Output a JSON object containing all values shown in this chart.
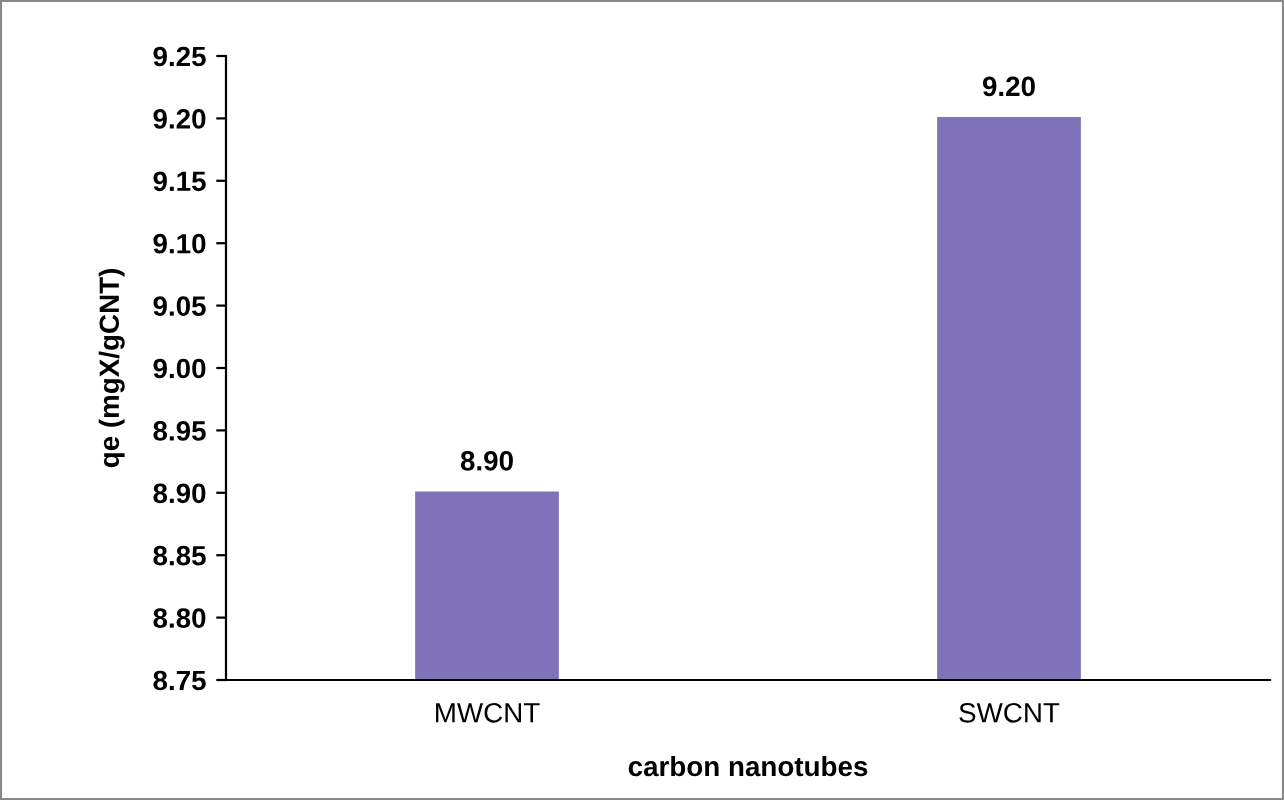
{
  "chart_data": {
    "type": "bar",
    "xlabel": "carbon nanotubes",
    "ylabel": "qe (mgX/gCNT)",
    "categories": [
      "MWCNT",
      "SWCNT"
    ],
    "values": [
      8.9,
      9.2
    ],
    "color": "#8073b9",
    "value_labels": [
      "8.90",
      "9.20"
    ],
    "ylim": [
      8.75,
      9.25
    ],
    "yticks": [
      {
        "value": 8.75,
        "label": "8.75"
      },
      {
        "value": 8.8,
        "label": "8.80"
      },
      {
        "value": 8.85,
        "label": "8.85"
      },
      {
        "value": 8.9,
        "label": "8.90"
      },
      {
        "value": 8.95,
        "label": "8.95"
      },
      {
        "value": 9.0,
        "label": "9.00"
      },
      {
        "value": 9.05,
        "label": "9.05"
      },
      {
        "value": 9.1,
        "label": "9.10"
      },
      {
        "value": 9.15,
        "label": "9.15"
      },
      {
        "value": 9.2,
        "label": "9.20"
      },
      {
        "value": 9.25,
        "label": "9.25"
      }
    ],
    "grid": false,
    "legend": false
  }
}
